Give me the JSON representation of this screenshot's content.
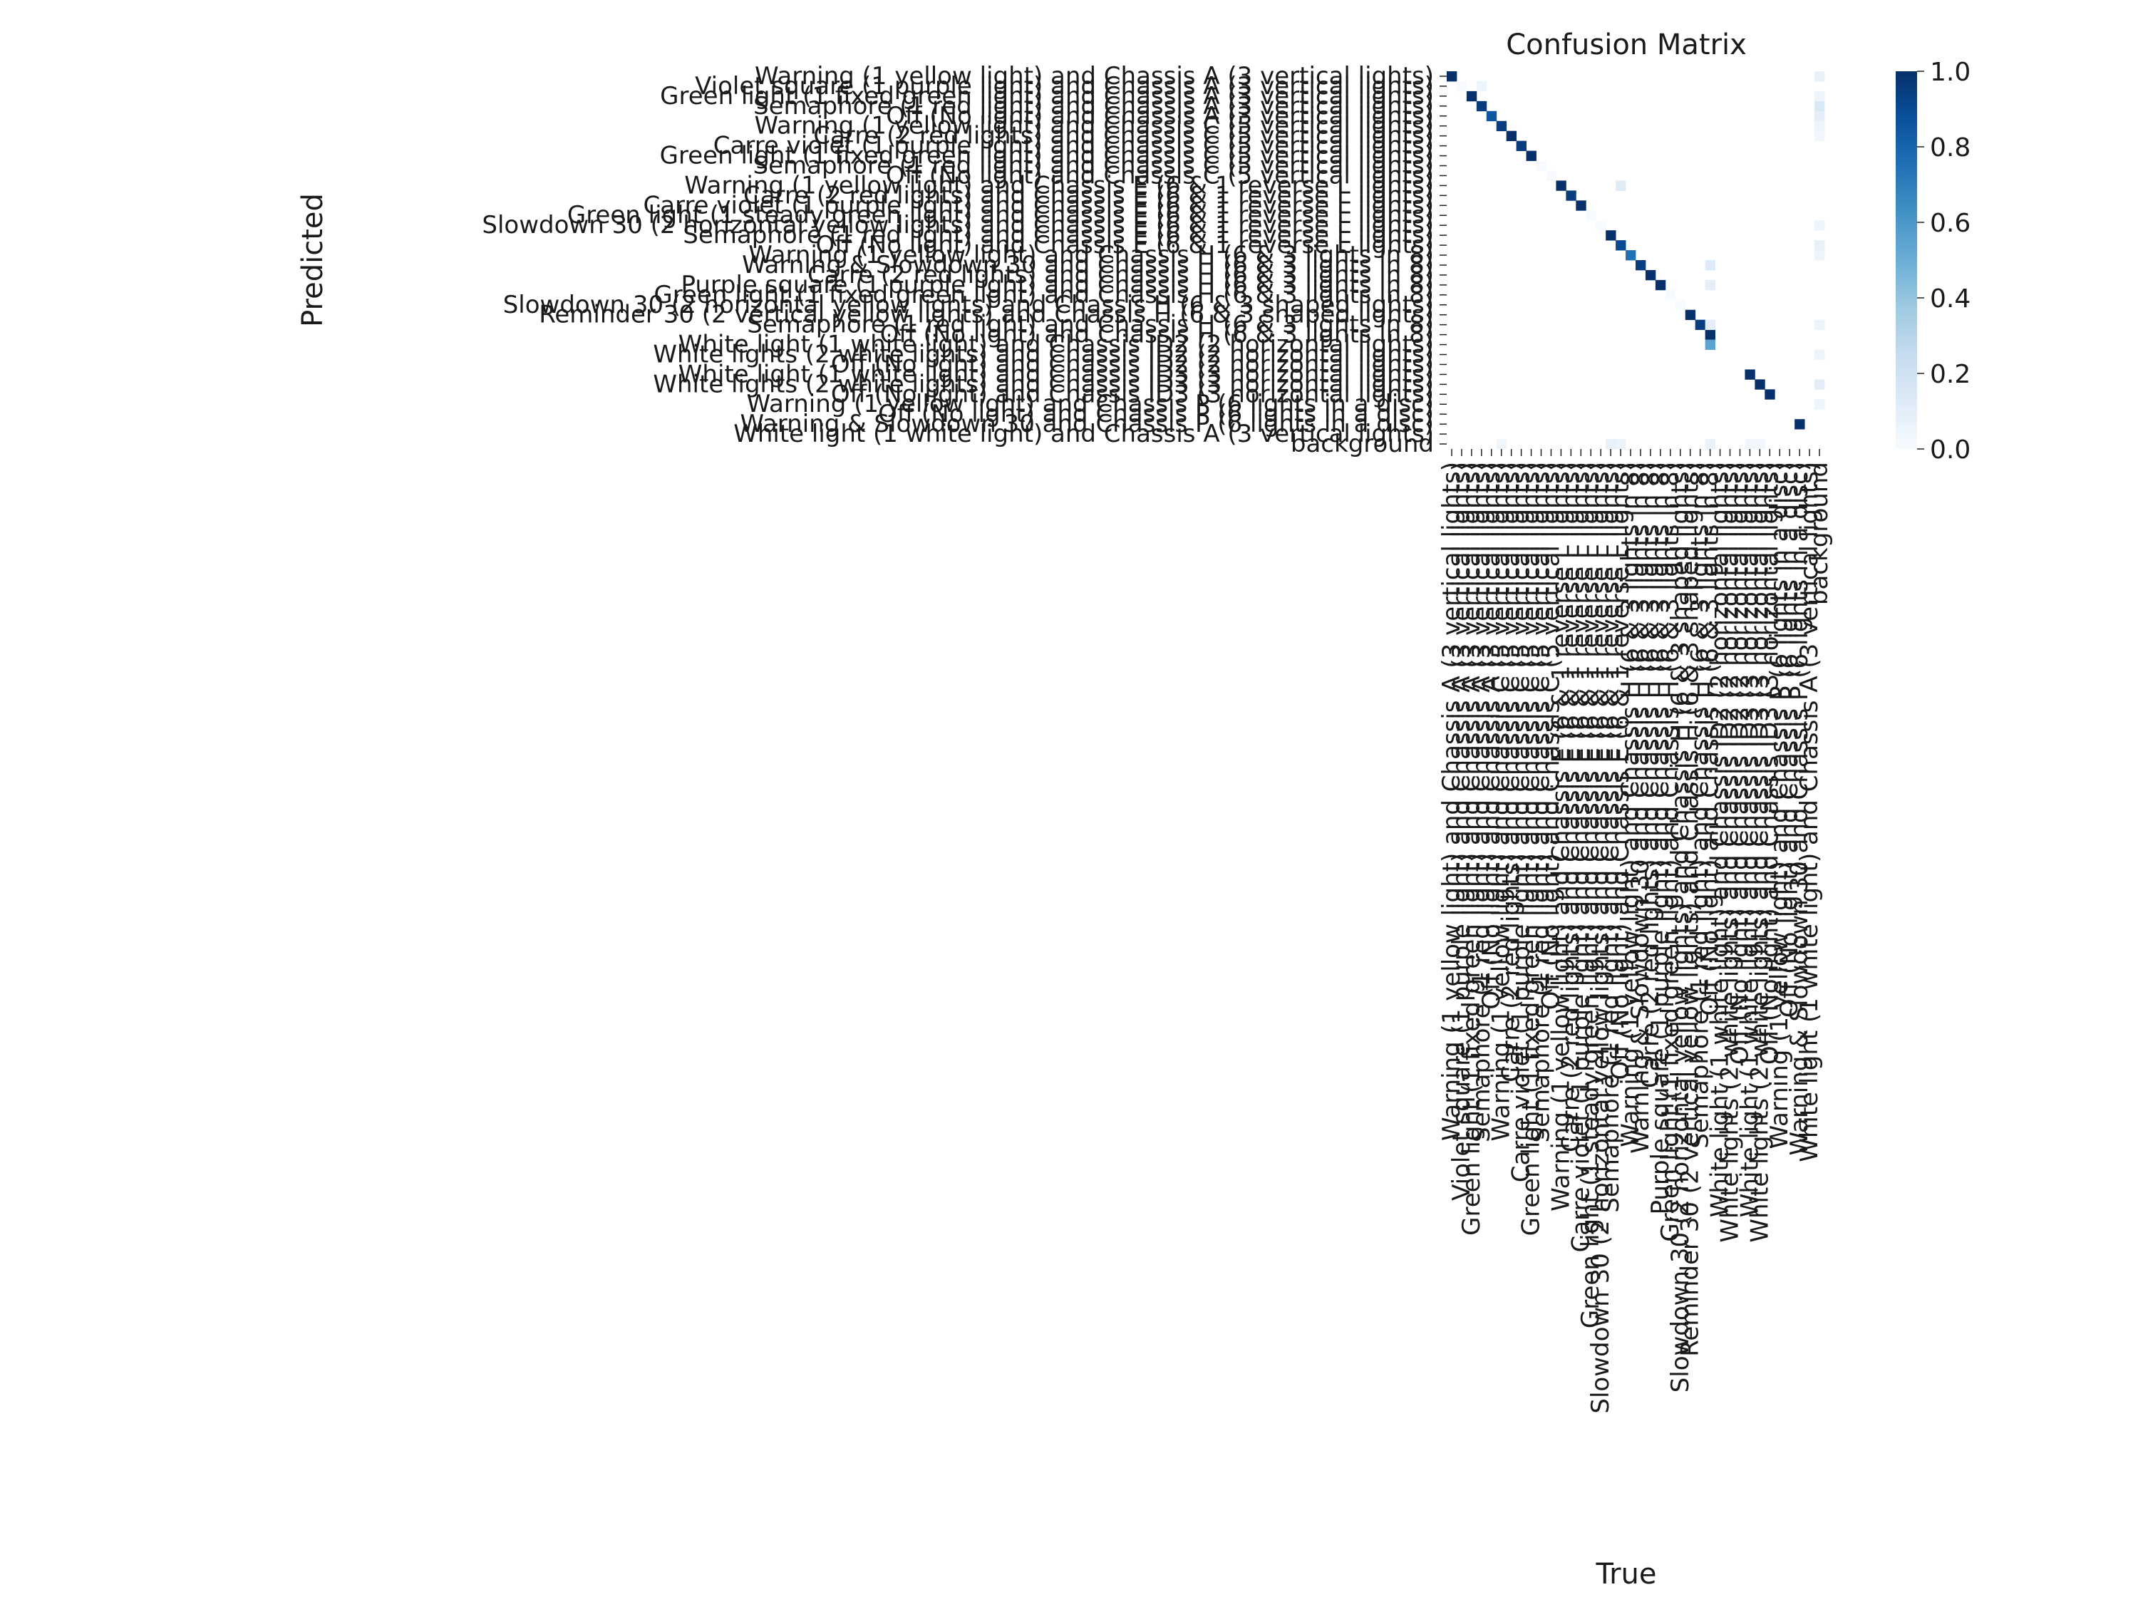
{
  "chart_data": {
    "type": "heatmap",
    "title": "Confusion Matrix",
    "xlabel": "True",
    "ylabel": "Predicted",
    "labels": [
      "Warning (1 yellow light) and Chassis A (3 vertical lights)",
      "Violet square (1 purple light) and Chassis A (3 vertical lights)",
      "Green light (1 fixed green light) and Chassis A (3 vertical lights)",
      "Semaphore (1 red light) and Chassis A (3 vertical lights)",
      "Off (No light) and Chassis A (3 vertical lights)",
      "Warning (1 yellow light) and Chassis C (5 vertical lights)",
      "Carre (2 red lights) and Chassis C (5 vertical lights)",
      "Carre violet (1 purple light) and Chassis C (5 vertical lights)",
      "Green light (1 fixed green light) and Chassis C (5 vertical lights)",
      "Semaphore (1 red light) and Chassis C (5 vertical lights)",
      "Off (No light) and Chassis C (5 vertical lights)",
      "Warning (1 yellow light) and Chassis E (6 & 1 reverse L lights)",
      "Carre (2 red lights) and Chassis E (6 & 1 reverse L lights)",
      "Carre violet (1 purple light) and Chassis E (6 & 1 reverse L lights)",
      "Green light (1 steady green light) and Chassis E (6 & 1 reverse L lights)",
      "Slowdown 30 (2 horizontal yellow lights) and Chassis E (6 & 1 reverse L lights)",
      "Semaphore (1 red light) and Chassis E (6 & 1 reverse L lights)",
      "Off (No light) and Chassis E (6 & 1 reverse L lights)",
      "Warning (1 yellow light) and Chassis H (6 & 3 lights in 8)",
      "Warning & Slowdown 30 and Chassis H (6 & 3 lights in 8)",
      "Carre (2 red lights) and Chassis H (6 & 3 lights in 8)",
      "Purple square (1 purple light) and Chassis H (6 & 3 lights in 8)",
      "Green light (1 fixed green light) and Chassis H (6 & 3 lights in 8)",
      "Slowdown 30 (2 horizontal yellow lights) and Chassis H (6 & 3 shaped lights)",
      "Reminder 30 (2 vertical yellow lights) and Chassis H (6 & 3 shaped lights)",
      "Semaphore (1 red light) and Chassis H (6 & 3 lights in 8)",
      "Off (No light) and Chassis H (6 & 3 lights in 8)",
      "White light (1 white light) and Chassis ID2 (2 horizontal lights)",
      "White lights (2 white lights) and Chassis ID2 (2 horizontal lights)",
      "Off (No light) and Chassis ID2 (2 horizontal lights)",
      "White light (1 white light) and Chassis ID3 (3 horizontal lights)",
      "White lights (2 white lights) and Chassis ID3 (3 horizontal lights)",
      "Off (No light) and Chassis ID3 (3 horizontal lights)",
      "Warning (1 yellow light) and Chassis P (6 lights in a disc)",
      "Off (No light) and Chassis P (6 lights in a disc)",
      "Warning & Slowdown 30 and Chassis P (6 lights in a disc)",
      "White light (1 white light) and Chassis A (3 vertical lights)",
      "background"
    ],
    "cells": [
      {
        "row": 0,
        "col": 0,
        "value": 1.0
      },
      {
        "row": 1,
        "col": 1,
        "value": 0.0
      },
      {
        "row": 2,
        "col": 2,
        "value": 1.0
      },
      {
        "row": 3,
        "col": 3,
        "value": 0.95
      },
      {
        "row": 4,
        "col": 4,
        "value": 0.85
      },
      {
        "row": 5,
        "col": 5,
        "value": 0.95
      },
      {
        "row": 6,
        "col": 6,
        "value": 1.0
      },
      {
        "row": 7,
        "col": 7,
        "value": 0.95
      },
      {
        "row": 8,
        "col": 8,
        "value": 1.0
      },
      {
        "row": 9,
        "col": 9,
        "value": 0.0
      },
      {
        "row": 10,
        "col": 10,
        "value": 0.0
      },
      {
        "row": 11,
        "col": 11,
        "value": 1.0
      },
      {
        "row": 12,
        "col": 12,
        "value": 0.95
      },
      {
        "row": 13,
        "col": 13,
        "value": 1.0
      },
      {
        "row": 14,
        "col": 14,
        "value": 0.0
      },
      {
        "row": 15,
        "col": 15,
        "value": 0.0
      },
      {
        "row": 16,
        "col": 16,
        "value": 1.0
      },
      {
        "row": 17,
        "col": 17,
        "value": 0.9
      },
      {
        "row": 18,
        "col": 18,
        "value": 0.75
      },
      {
        "row": 19,
        "col": 19,
        "value": 0.95
      },
      {
        "row": 20,
        "col": 20,
        "value": 1.0
      },
      {
        "row": 21,
        "col": 21,
        "value": 1.0
      },
      {
        "row": 22,
        "col": 22,
        "value": 0.0
      },
      {
        "row": 23,
        "col": 23,
        "value": 0.0
      },
      {
        "row": 24,
        "col": 24,
        "value": 1.0
      },
      {
        "row": 25,
        "col": 25,
        "value": 0.95
      },
      {
        "row": 26,
        "col": 26,
        "value": 1.0
      },
      {
        "row": 27,
        "col": 26,
        "value": 0.55
      },
      {
        "row": 30,
        "col": 30,
        "value": 1.0
      },
      {
        "row": 31,
        "col": 31,
        "value": 1.0
      },
      {
        "row": 32,
        "col": 32,
        "value": 1.0
      },
      {
        "row": 35,
        "col": 35,
        "value": 1.0
      },
      {
        "row": 0,
        "col": 37,
        "value": 0.08
      },
      {
        "row": 1,
        "col": 3,
        "value": 0.05
      },
      {
        "row": 2,
        "col": 37,
        "value": 0.05
      },
      {
        "row": 3,
        "col": 37,
        "value": 0.15
      },
      {
        "row": 4,
        "col": 37,
        "value": 0.1
      },
      {
        "row": 5,
        "col": 37,
        "value": 0.05
      },
      {
        "row": 6,
        "col": 37,
        "value": 0.03
      },
      {
        "row": 11,
        "col": 17,
        "value": 0.12
      },
      {
        "row": 15,
        "col": 37,
        "value": 0.05
      },
      {
        "row": 17,
        "col": 37,
        "value": 0.08
      },
      {
        "row": 18,
        "col": 37,
        "value": 0.05
      },
      {
        "row": 19,
        "col": 26,
        "value": 0.12
      },
      {
        "row": 21,
        "col": 26,
        "value": 0.1
      },
      {
        "row": 25,
        "col": 26,
        "value": 0.1
      },
      {
        "row": 25,
        "col": 37,
        "value": 0.05
      },
      {
        "row": 28,
        "col": 37,
        "value": 0.05
      },
      {
        "row": 31,
        "col": 37,
        "value": 0.1
      },
      {
        "row": 33,
        "col": 37,
        "value": 0.05
      },
      {
        "row": 37,
        "col": 5,
        "value": 0.04
      },
      {
        "row": 37,
        "col": 16,
        "value": 0.08
      },
      {
        "row": 37,
        "col": 17,
        "value": 0.06
      },
      {
        "row": 37,
        "col": 26,
        "value": 0.07
      },
      {
        "row": 37,
        "col": 30,
        "value": 0.03
      },
      {
        "row": 37,
        "col": 31,
        "value": 0.03
      }
    ],
    "colorbar": {
      "min": 0.0,
      "max": 1.0,
      "ticks": [
        "0.0",
        "0.2",
        "0.4",
        "0.6",
        "0.8",
        "1.0"
      ],
      "colormap": "Blues",
      "low_color": "#f7fbff",
      "high_color": "#08306b"
    },
    "grid": false
  }
}
